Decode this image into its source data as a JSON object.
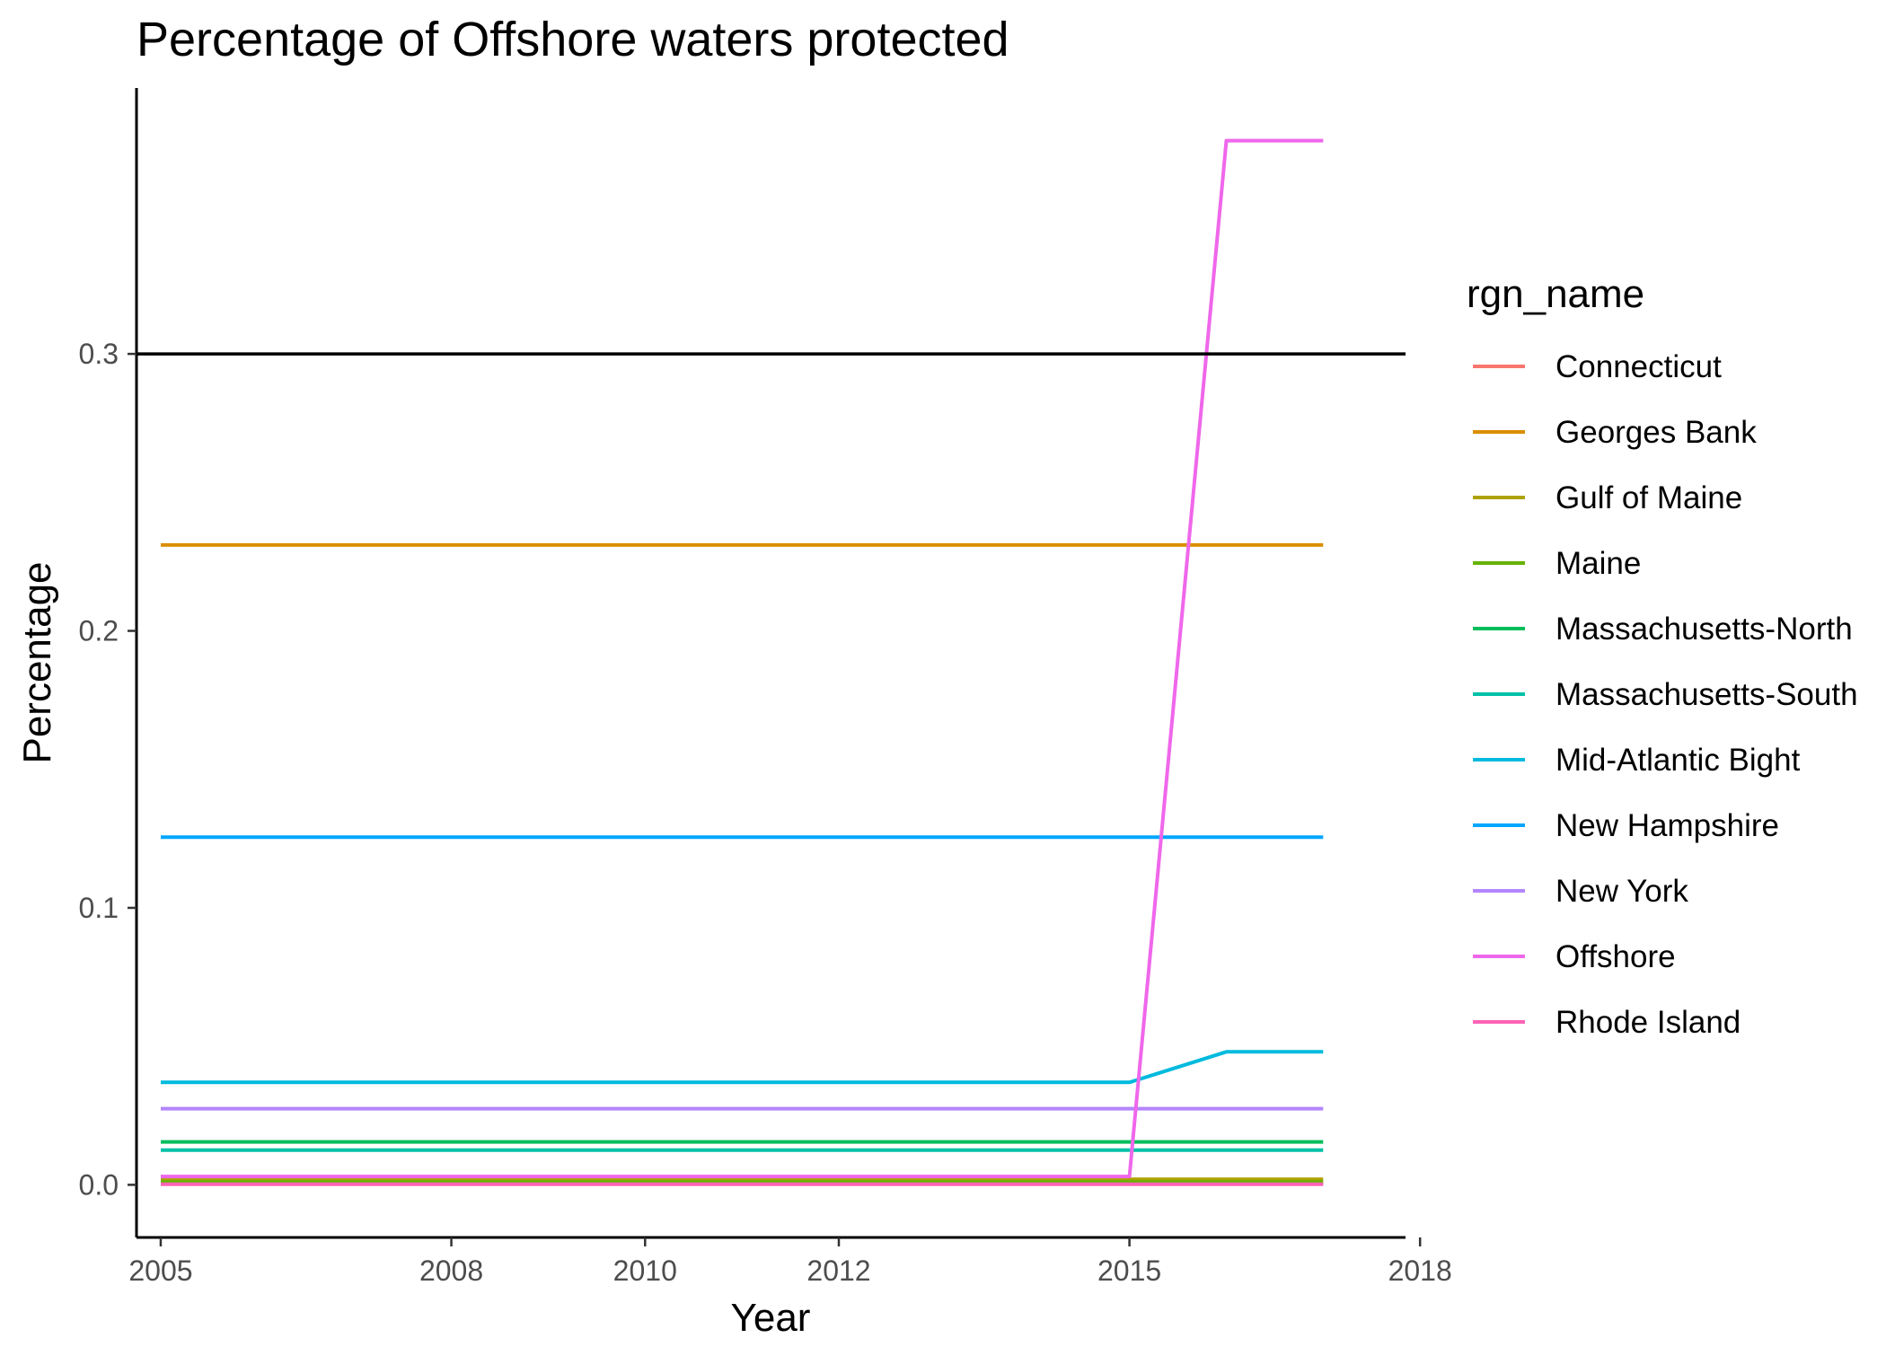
{
  "chart_data": {
    "type": "line",
    "title": "Percentage of Offshore waters protected",
    "xlabel": "Year",
    "ylabel": "Percentage",
    "xlim": [
      2004.75,
      2017.85
    ],
    "ylim": [
      -0.019,
      0.396
    ],
    "x_ticks": [
      2005,
      2008,
      2010,
      2012,
      2015,
      2018
    ],
    "x_tick_labels": [
      "2005",
      "2008",
      "2010",
      "2012",
      "2015",
      "2018"
    ],
    "y_ticks": [
      0.0,
      0.1,
      0.2,
      0.3
    ],
    "y_tick_labels": [
      "0.0",
      "0.1",
      "0.2",
      "0.3"
    ],
    "reference_line": {
      "y": 0.3,
      "color": "#000000"
    },
    "grid": false,
    "legend_title": "rgn_name",
    "legend_position": "right",
    "series": [
      {
        "name": "Connecticut",
        "color": "#F8766D",
        "points": [
          [
            2005,
            0.0005
          ],
          [
            2015,
            0.0005
          ],
          [
            2016,
            0.0005
          ],
          [
            2017,
            0.0005
          ]
        ]
      },
      {
        "name": "Georges Bank",
        "color": "#DB8E00",
        "points": [
          [
            2005,
            0.231
          ],
          [
            2015,
            0.231
          ],
          [
            2016,
            0.231
          ],
          [
            2017,
            0.231
          ]
        ]
      },
      {
        "name": "Gulf of Maine",
        "color": "#AEA200",
        "points": [
          [
            2005,
            0.002
          ],
          [
            2015,
            0.002
          ],
          [
            2016,
            0.002
          ],
          [
            2017,
            0.002
          ]
        ]
      },
      {
        "name": "Maine",
        "color": "#64B200",
        "points": [
          [
            2005,
            0.001
          ],
          [
            2015,
            0.001
          ],
          [
            2016,
            0.001
          ],
          [
            2017,
            0.001
          ]
        ]
      },
      {
        "name": "Massachusetts-North",
        "color": "#00BD5C",
        "points": [
          [
            2005,
            0.0155
          ],
          [
            2015,
            0.0155
          ],
          [
            2016,
            0.0155
          ],
          [
            2017,
            0.0155
          ]
        ]
      },
      {
        "name": "Massachusetts-South",
        "color": "#00C1A7",
        "points": [
          [
            2005,
            0.0125
          ],
          [
            2015,
            0.0125
          ],
          [
            2016,
            0.0125
          ],
          [
            2017,
            0.0125
          ]
        ]
      },
      {
        "name": "Mid-Atlantic Bight",
        "color": "#00BADE",
        "points": [
          [
            2005,
            0.037
          ],
          [
            2015,
            0.037
          ],
          [
            2016,
            0.048
          ],
          [
            2017,
            0.048
          ]
        ]
      },
      {
        "name": "New Hampshire",
        "color": "#00A6FF",
        "points": [
          [
            2005,
            0.1255
          ],
          [
            2015,
            0.1255
          ],
          [
            2016,
            0.1255
          ],
          [
            2017,
            0.1255
          ]
        ]
      },
      {
        "name": "New York",
        "color": "#B385FF",
        "points": [
          [
            2005,
            0.0275
          ],
          [
            2015,
            0.0275
          ],
          [
            2016,
            0.0275
          ],
          [
            2017,
            0.0275
          ]
        ]
      },
      {
        "name": "Offshore",
        "color": "#EF67EB",
        "points": [
          [
            2005,
            0.003
          ],
          [
            2015,
            0.003
          ],
          [
            2016,
            0.377
          ],
          [
            2017,
            0.377
          ]
        ]
      },
      {
        "name": "Rhode Island",
        "color": "#FF63B6",
        "points": [
          [
            2005,
            0.0002
          ],
          [
            2015,
            0.0002
          ],
          [
            2016,
            0.0002
          ],
          [
            2017,
            0.0002
          ]
        ]
      }
    ]
  }
}
